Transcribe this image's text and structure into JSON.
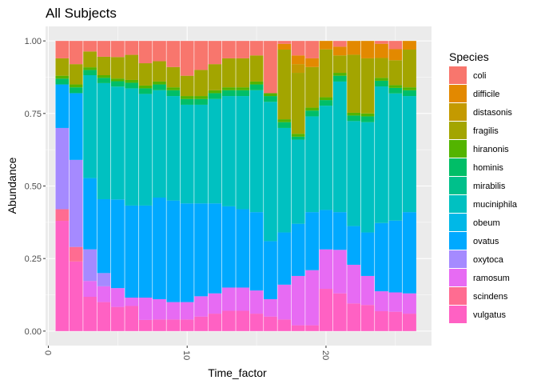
{
  "chart_data": {
    "type": "bar",
    "stacked": true,
    "position": "fill",
    "title": "All Subjects",
    "xlabel": "Time_factor",
    "ylabel": "Abundance",
    "xlim": [
      -0.2,
      27.6
    ],
    "ylim": [
      -0.05,
      1.05
    ],
    "x_ticks": [
      0,
      10,
      20
    ],
    "x_tick_labels": [
      "0",
      "10",
      "20"
    ],
    "x_tick_rotation": -90,
    "y_ticks": [
      0,
      0.25,
      0.5,
      0.75,
      1.0
    ],
    "y_tick_labels": [
      "0.00",
      "0.25",
      "0.50",
      "0.75",
      "1.00"
    ],
    "grid": true,
    "bar_outline": "#ffffff",
    "legend": {
      "title": "Species",
      "position": "right"
    },
    "x": [
      1,
      2,
      3,
      4,
      5,
      6,
      7,
      8,
      9,
      10,
      11,
      12,
      13,
      14,
      15,
      16,
      17,
      18,
      19,
      20,
      21,
      22,
      23,
      24,
      25,
      26
    ],
    "series": [
      {
        "name": "vulgatus",
        "color": "#FF61C3",
        "values": [
          0.38,
          0.24,
          0.13,
          0.11,
          0.09,
          0.09,
          0.04,
          0.04,
          0.04,
          0.04,
          0.05,
          0.06,
          0.07,
          0.07,
          0.06,
          0.05,
          0.04,
          0.02,
          0.02,
          0.15,
          0.13,
          0.1,
          0.09,
          0.07,
          0.07,
          0.06
        ]
      },
      {
        "name": "scindens",
        "color": "#FF6C91",
        "values": [
          0.04,
          0.05,
          0.0,
          0.0,
          0.0,
          0.0,
          0.0,
          0.0,
          0.0,
          0.0,
          0.0,
          0.0,
          0.0,
          0.0,
          0.0,
          0.0,
          0.0,
          0.0,
          0.0,
          0.0,
          0.0,
          0.0,
          0.0,
          0.0,
          0.0,
          0.0
        ]
      },
      {
        "name": "ramosum",
        "color": "#E76BF3",
        "values": [
          0.0,
          0.0,
          0.06,
          0.06,
          0.07,
          0.03,
          0.08,
          0.07,
          0.06,
          0.06,
          0.07,
          0.07,
          0.08,
          0.08,
          0.08,
          0.06,
          0.12,
          0.17,
          0.19,
          0.14,
          0.15,
          0.14,
          0.1,
          0.07,
          0.07,
          0.07
        ]
      },
      {
        "name": "oxytoca",
        "color": "#A58AFF",
        "values": [
          0.28,
          0.3,
          0.12,
          0.05,
          0.0,
          0.0,
          0.0,
          0.0,
          0.0,
          0.0,
          0.0,
          0.0,
          0.0,
          0.0,
          0.0,
          0.0,
          0.0,
          0.0,
          0.0,
          0.0,
          0.0,
          0.0,
          0.0,
          0.0,
          0.0,
          0.0
        ]
      },
      {
        "name": "ovatus",
        "color": "#00A9FF",
        "values": [
          0.15,
          0.23,
          0.27,
          0.28,
          0.33,
          0.33,
          0.33,
          0.35,
          0.35,
          0.34,
          0.32,
          0.31,
          0.28,
          0.27,
          0.27,
          0.2,
          0.18,
          0.18,
          0.2,
          0.14,
          0.13,
          0.14,
          0.15,
          0.24,
          0.26,
          0.28
        ]
      },
      {
        "name": "obeum",
        "color": "#00B8E7",
        "values": [
          0.0,
          0.0,
          0.0,
          0.0,
          0.0,
          0.0,
          0.0,
          0.0,
          0.0,
          0.0,
          0.0,
          0.0,
          0.0,
          0.0,
          0.0,
          0.0,
          0.0,
          0.0,
          0.0,
          0.0,
          0.0,
          0.0,
          0.0,
          0.0,
          0.0,
          0.0
        ]
      },
      {
        "name": "muciniphila",
        "color": "#00C1C1",
        "values": [
          0.0,
          0.0,
          0.39,
          0.44,
          0.42,
          0.42,
          0.4,
          0.37,
          0.36,
          0.34,
          0.34,
          0.36,
          0.38,
          0.39,
          0.42,
          0.48,
          0.36,
          0.29,
          0.33,
          0.37,
          0.45,
          0.38,
          0.38,
          0.48,
          0.46,
          0.4
        ]
      },
      {
        "name": "mirabilis",
        "color": "#00C08B",
        "values": [
          0.0,
          0.0,
          0.0,
          0.0,
          0.0,
          0.0,
          0.0,
          0.0,
          0.0,
          0.0,
          0.0,
          0.0,
          0.0,
          0.0,
          0.0,
          0.0,
          0.0,
          0.0,
          0.0,
          0.0,
          0.0,
          0.0,
          0.0,
          0.0,
          0.0,
          0.0
        ]
      },
      {
        "name": "hominis",
        "color": "#00BE67",
        "values": [
          0.02,
          0.02,
          0.02,
          0.02,
          0.02,
          0.02,
          0.02,
          0.02,
          0.02,
          0.02,
          0.02,
          0.02,
          0.02,
          0.02,
          0.02,
          0.02,
          0.02,
          0.01,
          0.02,
          0.02,
          0.02,
          0.02,
          0.02,
          0.02,
          0.02,
          0.02
        ]
      },
      {
        "name": "hiranonis",
        "color": "#53B400",
        "values": [
          0.01,
          0.01,
          0.01,
          0.01,
          0.01,
          0.01,
          0.01,
          0.01,
          0.01,
          0.01,
          0.01,
          0.01,
          0.01,
          0.01,
          0.01,
          0.01,
          0.01,
          0.01,
          0.01,
          0.01,
          0.01,
          0.01,
          0.01,
          0.01,
          0.01,
          0.01
        ]
      },
      {
        "name": "fragilis",
        "color": "#A3A500",
        "values": [
          0.06,
          0.07,
          0.06,
          0.07,
          0.08,
          0.09,
          0.08,
          0.07,
          0.07,
          0.07,
          0.09,
          0.09,
          0.1,
          0.1,
          0.09,
          0.0,
          0.24,
          0.21,
          0.14,
          0.17,
          0.06,
          0.21,
          0.19,
          0.07,
          0.09,
          0.13
        ]
      },
      {
        "name": "distasonis",
        "color": "#C49A00",
        "values": [
          0.0,
          0.0,
          0.0,
          0.0,
          0.0,
          0.0,
          0.0,
          0.0,
          0.0,
          0.0,
          0.0,
          0.0,
          0.0,
          0.0,
          0.0,
          0.0,
          0.0,
          0.03,
          0.0,
          0.0,
          0.0,
          0.0,
          0.0,
          0.0,
          0.0,
          0.0
        ]
      },
      {
        "name": "difficile",
        "color": "#E38900",
        "values": [
          0.0,
          0.0,
          0.0,
          0.0,
          0.0,
          0.0,
          0.0,
          0.0,
          0.0,
          0.0,
          0.0,
          0.0,
          0.0,
          0.0,
          0.0,
          0.0,
          0.02,
          0.03,
          0.03,
          0.03,
          0.03,
          0.05,
          0.06,
          0.05,
          0.04,
          0.03
        ]
      },
      {
        "name": "coli",
        "color": "#F8766D",
        "values": [
          0.06,
          0.08,
          0.04,
          0.06,
          0.06,
          0.05,
          0.08,
          0.07,
          0.09,
          0.12,
          0.1,
          0.08,
          0.06,
          0.06,
          0.05,
          0.18,
          0.01,
          0.05,
          0.06,
          0.0,
          0.02,
          0.0,
          0.0,
          0.01,
          0.03,
          0.0
        ]
      }
    ]
  }
}
